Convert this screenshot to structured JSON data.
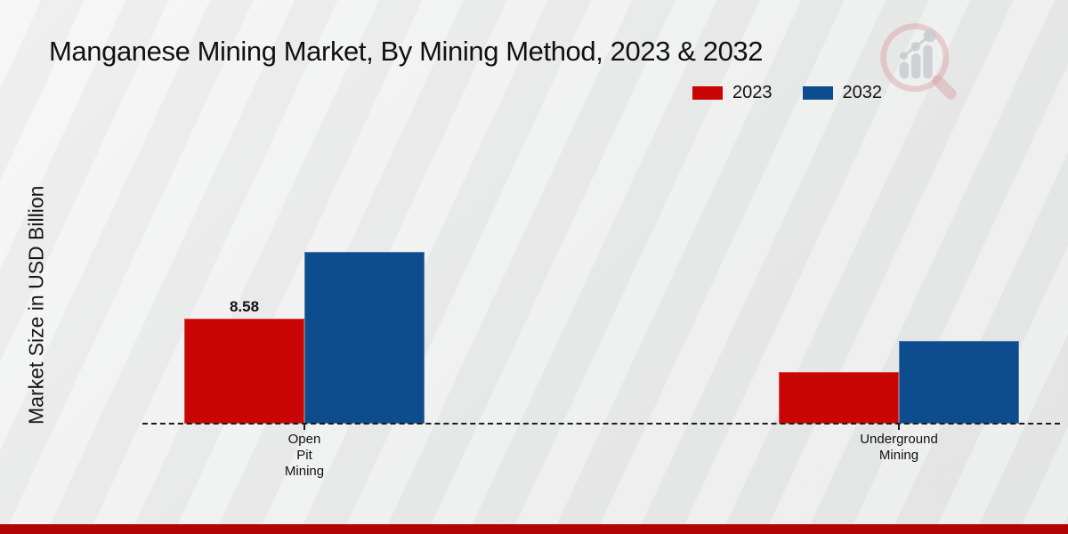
{
  "page": {
    "title": "Manganese Mining Market, By Mining Method, 2023 & 2032"
  },
  "chart_data": {
    "type": "bar",
    "title": "Manganese Mining Market, By Mining Method, 2023 & 2032",
    "xlabel": "",
    "ylabel": "Market Size in USD Billion",
    "categories": [
      [
        "Open",
        "Pit",
        "Mining"
      ],
      [
        "Underground",
        "Mining"
      ]
    ],
    "category_names": [
      "Open Pit Mining",
      "Underground Mining"
    ],
    "series": [
      {
        "name": "2023",
        "color": "#c90505",
        "values": [
          8.58,
          4.25
        ],
        "labels": [
          "8.58",
          ""
        ]
      },
      {
        "name": "2032",
        "color": "#0d4d8d",
        "values": [
          14.05,
          6.8
        ],
        "labels": [
          "",
          ""
        ]
      }
    ],
    "legend_position": "top-right",
    "grid": false,
    "baseline_style": "dashed",
    "ylim": [
      0,
      16
    ]
  },
  "branding": {
    "logo_icon": "magnifier-bar-chart-logo",
    "bottom_strip_color": "#b20404"
  }
}
